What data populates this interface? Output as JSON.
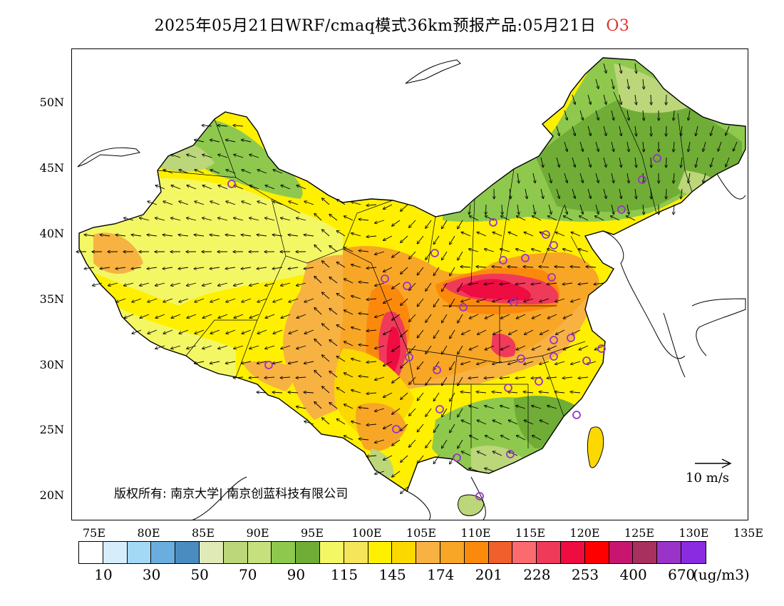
{
  "title": {
    "main": "2025年05月21日WRF/cmaq模式36km预报产品:05月21日",
    "species": "O3",
    "species_color": "#e03030"
  },
  "axes": {
    "y_labels": [
      "50N",
      "45N",
      "40N",
      "35N",
      "30N",
      "25N",
      "20N"
    ],
    "x_labels": [
      "75E",
      "80E",
      "85E",
      "90E",
      "95E",
      "100E",
      "105E",
      "110E",
      "115E",
      "120E",
      "125E",
      "130E",
      "135E"
    ]
  },
  "copyright": "版权所有: 南京大学| 南京创蓝科技有限公司",
  "wind_reference": {
    "label": "10 m/s"
  },
  "colorbar": {
    "colors": [
      "#ffffff",
      "#d6eefb",
      "#a3d9f5",
      "#6aaedf",
      "#4a8cc0",
      "#dfeab7",
      "#bcd67a",
      "#c5e07c",
      "#8ec94e",
      "#70ad37",
      "#f3f764",
      "#f4e55a",
      "#fff000",
      "#fbd800",
      "#f7b242",
      "#f8a626",
      "#fb8a0c",
      "#f15f2c",
      "#fb6a6e",
      "#f03a5a",
      "#ee0c40",
      "#ff0000",
      "#c81670",
      "#a8305e",
      "#9a33c8",
      "#8a2be2"
    ],
    "labels": [
      "10",
      "30",
      "50",
      "70",
      "90",
      "115",
      "145",
      "174",
      "201",
      "228",
      "253",
      "400",
      "670"
    ],
    "unit": "(ug/m3)"
  },
  "map": {
    "colors": {
      "green_dark": "#70ad37",
      "green_mid": "#8ec94e",
      "green_light": "#bcd67a",
      "yellow_pale": "#f3f764",
      "yellow": "#fff000",
      "yellow_gold": "#fbd800",
      "orange_light": "#f7b242",
      "orange": "#f8a626",
      "orange_dark": "#fb8a0c",
      "red_pink": "#f03a5a",
      "red": "#ee0c40",
      "circle": "#9a33c8"
    }
  }
}
